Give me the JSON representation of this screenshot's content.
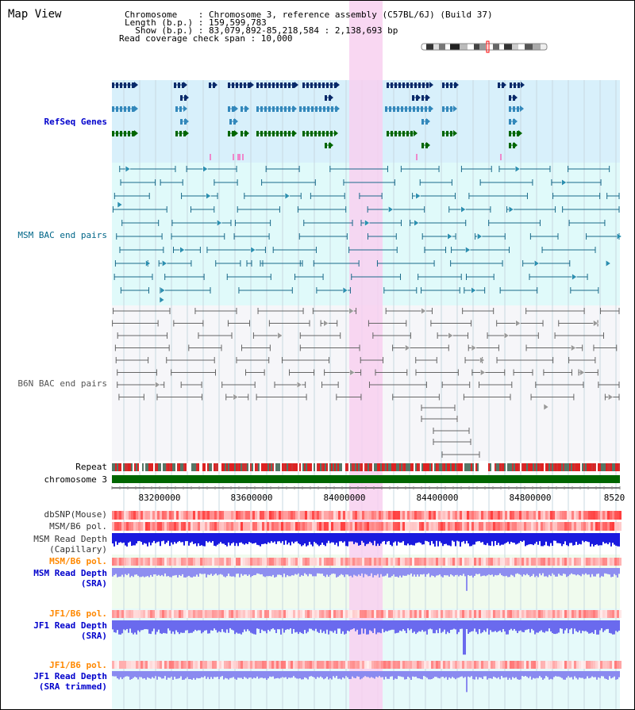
{
  "view": {
    "title": "Map View"
  },
  "info": {
    "chromosome_line": "Chromosome    : Chromosome 3, reference assembly (C57BL/6J) (Build 37)",
    "length_line": "Length (b.p.) : 159,599,783",
    "show_line": "  Show (b.p.) : 83,079,892-85,218,584 : 2,138,693 bp",
    "coverage_line": "Read coverage check span : 10,000"
  },
  "tracks": {
    "refseq": {
      "label": "RefSeq Genes",
      "color": "#0000cc"
    },
    "msm_bac": {
      "label": "MSM BAC end pairs",
      "color": "#006688"
    },
    "b6n_bac": {
      "label": "B6N BAC end pairs",
      "color": "#555555"
    },
    "repeat": {
      "label": "Repeat"
    },
    "chromosome": {
      "label": "chromosome 3"
    },
    "dbsnp": {
      "label": "dbSNP(Mouse)"
    },
    "msm_b6_pol": {
      "label": "MSM/B6 pol."
    },
    "msm_depth_cap": {
      "label1": "MSM Read Depth",
      "label2": "(Capillary)"
    },
    "msm_b6_pol2": {
      "label": "MSM/B6 pol.",
      "color": "#ff8800"
    },
    "msm_depth_sra": {
      "label1": "MSM Read Depth",
      "label2": "(SRA)",
      "color": "#0000cc"
    },
    "jf1_b6_pol": {
      "label": "JF1/B6 pol.",
      "color": "#ff8800"
    },
    "jf1_depth_sra": {
      "label1": "JF1 Read Depth",
      "label2": "(SRA)",
      "color": "#0000cc"
    },
    "jf1_b6_pol2": {
      "label": "JF1/B6 pol.",
      "color": "#ff8800"
    },
    "jf1_depth_trim": {
      "label1": "JF1 Read Depth",
      "label2": "(SRA trimmed)",
      "color": "#0000cc"
    }
  },
  "ruler": {
    "ticks": [
      "83200000",
      "83600000",
      "84000000",
      "84400000",
      "84800000",
      "8520"
    ]
  },
  "colors": {
    "highlight": "#f8d0f0",
    "refseq_bg": "#d8f0fb",
    "msm_bg": "#e0fafa",
    "b6n_bg": "#f6f6f9",
    "dark_gene": "#0a2a6a",
    "mid_gene": "#3388bb",
    "green_gene": "#006600",
    "chromosome_bar": "#006600"
  }
}
